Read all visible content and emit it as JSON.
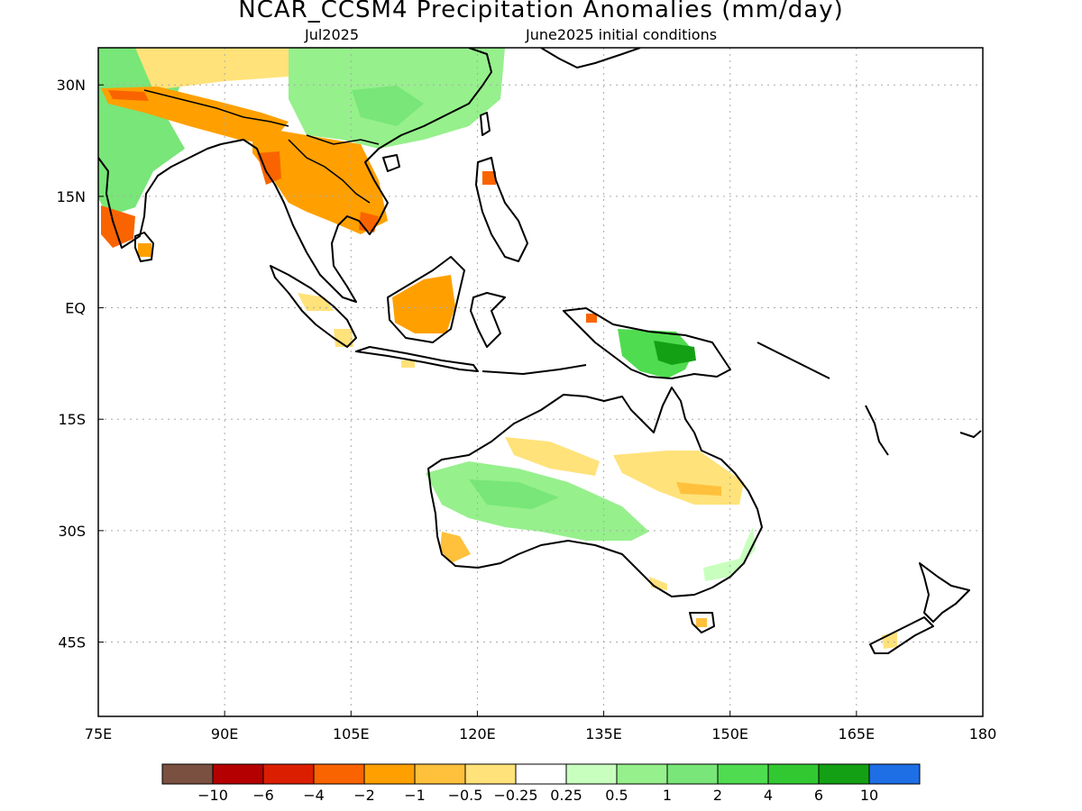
{
  "title": "NCAR_CCSM4 Precipitation Anomalies (mm/day)",
  "valid_month": "Jul2025",
  "initial_conditions": "June2025 initial conditions",
  "map": {
    "lon_range": [
      75,
      180
    ],
    "lat_range": [
      -55,
      35
    ],
    "lon_ticks": [
      "75E",
      "90E",
      "105E",
      "120E",
      "135E",
      "150E",
      "165E",
      "180"
    ],
    "lon_values": [
      75,
      90,
      105,
      120,
      135,
      150,
      165,
      180
    ],
    "lat_ticks": [
      "30N",
      "15N",
      "EQ",
      "15S",
      "30S",
      "45S"
    ],
    "lat_values": [
      30,
      15,
      0,
      -15,
      -30,
      -45
    ],
    "grid": "dotted gray"
  },
  "colorbar": {
    "colors": [
      "#7a5040",
      "#b40000",
      "#dc1e00",
      "#fa6400",
      "#ffa000",
      "#ffc03c",
      "#ffe27a",
      "#ffffff",
      "#c8ffbe",
      "#96f08c",
      "#78e678",
      "#50dc50",
      "#32c832",
      "#14a014",
      "#1e6ee6"
    ],
    "labels": [
      "−10",
      "−6",
      "−4",
      "−2",
      "−1",
      "−0.5",
      "−0.25",
      "0.25",
      "0.5",
      "1",
      "2",
      "4",
      "6",
      "10"
    ]
  },
  "regions": [
    {
      "name": "India / Himalaya (green)",
      "color": "#78e678"
    },
    {
      "name": "South China (green)",
      "color": "#96f08c"
    },
    {
      "name": "Indochina (orange)",
      "color": "#ffa000"
    },
    {
      "name": "Borneo (orange)",
      "color": "#ffa000"
    },
    {
      "name": "New Guinea (green)",
      "color": "#50dc50"
    },
    {
      "name": "Western Australia (green)",
      "color": "#96f08c"
    },
    {
      "name": "Northern Australia (yellow)",
      "color": "#ffe27a"
    }
  ]
}
